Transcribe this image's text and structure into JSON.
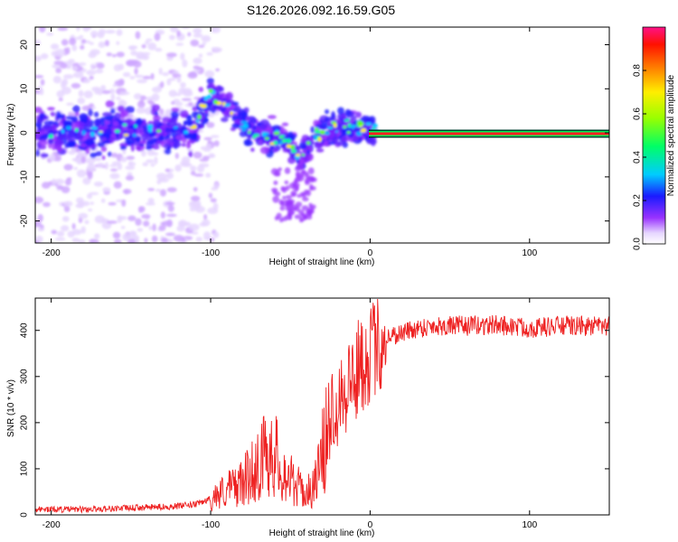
{
  "title": "S126.2026.092.16.59.G05",
  "chart_data": [
    {
      "type": "heatmap",
      "xlabel": "Height of straight line (km)",
      "ylabel": "Frequency (Hz)",
      "xlim": [
        -210,
        150
      ],
      "ylim": [
        -25,
        24
      ],
      "xticks": [
        {
          "v": -200,
          "label": "-200"
        },
        {
          "v": -100,
          "label": "-100"
        },
        {
          "v": 0,
          "label": "0"
        },
        {
          "v": 100,
          "label": "100"
        }
      ],
      "yticks": [
        {
          "v": -20,
          "label": "-20"
        },
        {
          "v": -10,
          "label": "-10"
        },
        {
          "v": 0,
          "label": "0"
        },
        {
          "v": 10,
          "label": "10"
        },
        {
          "v": 20,
          "label": "20"
        }
      ],
      "ridge_trace": [
        [
          -210,
          0
        ],
        [
          -150,
          0.5
        ],
        [
          -110,
          1
        ],
        [
          -100,
          9
        ],
        [
          -92,
          7
        ],
        [
          -85,
          4
        ],
        [
          -78,
          1
        ],
        [
          -70,
          0
        ],
        [
          -58,
          -1
        ],
        [
          -50,
          -3
        ],
        [
          -43,
          -6
        ],
        [
          -38,
          -2
        ],
        [
          -30,
          0
        ],
        [
          -20,
          1
        ],
        [
          -10,
          1
        ],
        [
          0,
          1
        ],
        [
          150,
          0
        ]
      ],
      "colorbar": {
        "label": "Normalized spectral amplitude",
        "range": [
          0,
          1
        ],
        "ticks": [
          {
            "v": 0.0,
            "label": "0.0"
          },
          {
            "v": 0.2,
            "label": "0.2"
          },
          {
            "v": 0.4,
            "label": "0.4"
          },
          {
            "v": 0.6,
            "label": "0.6"
          },
          {
            "v": 0.8,
            "label": "0.8"
          }
        ]
      }
    },
    {
      "type": "line",
      "xlabel": "Height of straight line (km)",
      "ylabel": "SNR (10 * v/v)",
      "xlim": [
        -210,
        150
      ],
      "ylim": [
        0,
        470
      ],
      "xticks": [
        {
          "v": -200,
          "label": "-200"
        },
        {
          "v": -100,
          "label": "-100"
        },
        {
          "v": 0,
          "label": "0"
        },
        {
          "v": 100,
          "label": "100"
        }
      ],
      "yticks": [
        {
          "v": 0,
          "label": "0"
        },
        {
          "v": 100,
          "label": "100"
        },
        {
          "v": 200,
          "label": "200"
        },
        {
          "v": 300,
          "label": "300"
        },
        {
          "v": 400,
          "label": "400"
        }
      ],
      "color": "#ee2222",
      "series": [
        {
          "name": "SNR",
          "x": [
            -210,
            -180,
            -150,
            -125,
            -110,
            -100,
            -90,
            -80,
            -70,
            -62,
            -55,
            -48,
            -40,
            -35,
            -30,
            -25,
            -20,
            -15,
            -10,
            -5,
            0,
            10,
            20,
            30,
            40,
            60,
            80,
            100,
            120,
            150
          ],
          "values": [
            12,
            12,
            15,
            18,
            22,
            35,
            55,
            70,
            110,
            150,
            95,
            70,
            45,
            65,
            120,
            220,
            260,
            280,
            300,
            330,
            350,
            385,
            395,
            405,
            410,
            410,
            412,
            405,
            410,
            408
          ]
        }
      ]
    }
  ]
}
